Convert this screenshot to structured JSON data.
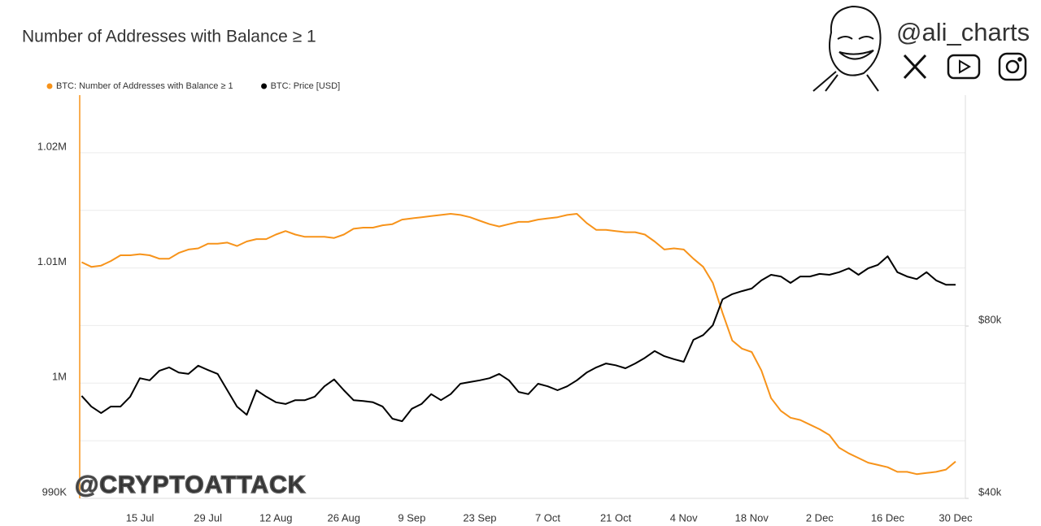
{
  "header": {
    "handle": "@ali_charts"
  },
  "watermark": "@CRYPTOATTACK",
  "chart_data": {
    "type": "line",
    "title": "Number of Addresses with Balance ≥ 1",
    "categories": [
      null,
      null,
      null,
      null,
      null,
      null,
      "15 Jul",
      null,
      null,
      null,
      null,
      null,
      null,
      "29 Jul",
      null,
      null,
      null,
      null,
      null,
      null,
      "12 Aug",
      null,
      null,
      null,
      null,
      null,
      null,
      "26 Aug",
      null,
      null,
      null,
      null,
      null,
      null,
      "9 Sep",
      null,
      null,
      null,
      null,
      null,
      null,
      "23 Sep",
      null,
      null,
      null,
      null,
      null,
      null,
      "7 Oct",
      null,
      null,
      null,
      null,
      null,
      null,
      "21 Oct",
      null,
      null,
      null,
      null,
      null,
      null,
      "4 Nov",
      null,
      null,
      null,
      null,
      null,
      null,
      "18 Nov",
      null,
      null,
      null,
      null,
      null,
      null,
      "2 Dec",
      null,
      null,
      null,
      null,
      null,
      null,
      "16 Dec",
      null,
      null,
      null,
      null,
      null,
      null,
      "30 Dec"
    ],
    "series": [
      {
        "name": "BTC: Number of Addresses with Balance ≥ 1",
        "color": "#f7931a",
        "values": [
          1010500,
          1010100,
          1010200,
          1010600,
          1011100,
          1011100,
          1011200,
          1011100,
          1010800,
          1010800,
          1011300,
          1011600,
          1011700,
          1012100,
          1012100,
          1012200,
          1011900,
          1012300,
          1012500,
          1012500,
          1012900,
          1013200,
          1012900,
          1012700,
          1012700,
          1012700,
          1012600,
          1012900,
          1013400,
          1013500,
          1013500,
          1013700,
          1013800,
          1014200,
          1014300,
          1014400,
          1014500,
          1014600,
          1014700,
          1014600,
          1014400,
          1014100,
          1013800,
          1013600,
          1013800,
          1014000,
          1014000,
          1014200,
          1014300,
          1014400,
          1014600,
          1014700,
          1013900,
          1013300,
          1013300,
          1013200,
          1013100,
          1013100,
          1012900,
          1012300,
          1011600,
          1011700,
          1011600,
          1010800,
          1010100,
          1008700,
          1006100,
          1003700,
          1003000,
          1002700,
          1001100,
          998700,
          997600,
          997000,
          996800,
          996400,
          996000,
          995500,
          994400,
          993900,
          993500,
          993100,
          992900,
          992700,
          992300,
          992300,
          992100,
          992200,
          992300,
          992500,
          993200
        ]
      },
      {
        "name": "BTC: Price [USD]",
        "color": "#000000",
        "axis": "y2",
        "values": [
          63800,
          61300,
          59800,
          61300,
          61300,
          63600,
          67900,
          67400,
          69600,
          70400,
          69200,
          68900,
          70800,
          69800,
          68900,
          65100,
          61300,
          59400,
          65100,
          63600,
          62300,
          61900,
          62800,
          62800,
          63600,
          66000,
          67600,
          65100,
          62800,
          62600,
          62300,
          61300,
          58500,
          57900,
          60800,
          61900,
          64200,
          62800,
          64200,
          66600,
          67000,
          67400,
          67900,
          68900,
          67400,
          64700,
          64200,
          66600,
          66000,
          65100,
          66000,
          67400,
          69200,
          70400,
          71300,
          70900,
          70200,
          71300,
          72600,
          74200,
          73000,
          72300,
          71700,
          76800,
          77900,
          80200,
          86200,
          87400,
          88100,
          88700,
          90600,
          91900,
          91500,
          90000,
          91500,
          91500,
          92100,
          91900,
          92500,
          93400,
          91900,
          93400,
          94200,
          96200,
          92500,
          91500,
          90900,
          92500,
          90600,
          89600,
          89600
        ]
      }
    ],
    "ylim": [
      990000,
      1025000
    ],
    "yticks": [
      {
        "value": 990000,
        "label": "990K"
      },
      {
        "value": 1000000,
        "label": "1M"
      },
      {
        "value": 1010000,
        "label": "1.01M"
      },
      {
        "value": 1020000,
        "label": "1.02M"
      }
    ],
    "yminorgrid": [
      995000,
      1005000,
      1015000
    ],
    "y2lim": [
      40000,
      133600
    ],
    "y2ticks": [
      {
        "value": 40000,
        "label": "$40k"
      },
      {
        "value": 80000,
        "label": "$80k"
      }
    ],
    "grid": true
  }
}
